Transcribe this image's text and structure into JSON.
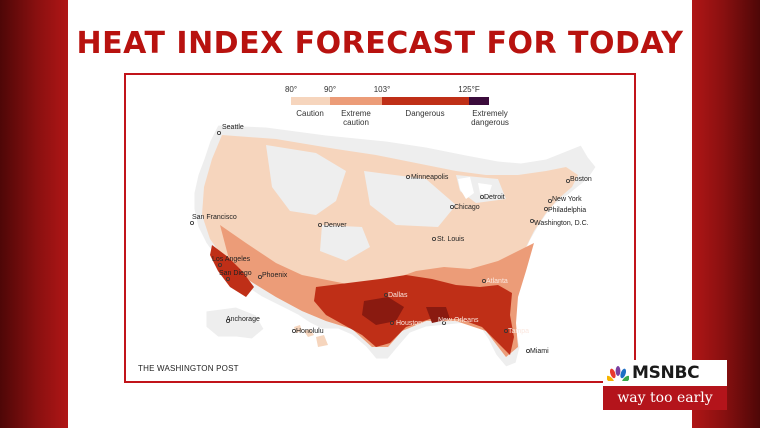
{
  "headline": "HEAT INDEX FORECAST FOR TODAY",
  "legend": {
    "ticks": [
      "80°",
      "90°",
      "103°",
      "125°F"
    ],
    "categories": [
      {
        "label": "Caution",
        "color": "#f6d5bd"
      },
      {
        "label": "Extreme caution",
        "color": "#ec9c78"
      },
      {
        "label": "Dangerous",
        "color": "#bf2f17"
      },
      {
        "label": "Extremely dangerous",
        "color": "#3b0b3b"
      }
    ]
  },
  "credit": "THE WASHINGTON POST",
  "cities": [
    "Seattle",
    "San Francisco",
    "Los Angeles",
    "San Diego",
    "Phoenix",
    "Denver",
    "Minneapolis",
    "Chicago",
    "Detroit",
    "St. Louis",
    "Dallas",
    "Houston",
    "New Orleans",
    "Atlanta",
    "Tampa",
    "Miami",
    "Washington, D.C.",
    "Philadelphia",
    "New York",
    "Boston",
    "Anchorage",
    "Honolulu"
  ],
  "logo": {
    "network": "MSNBC",
    "show": "way too early",
    "accent": "#b4141b"
  }
}
